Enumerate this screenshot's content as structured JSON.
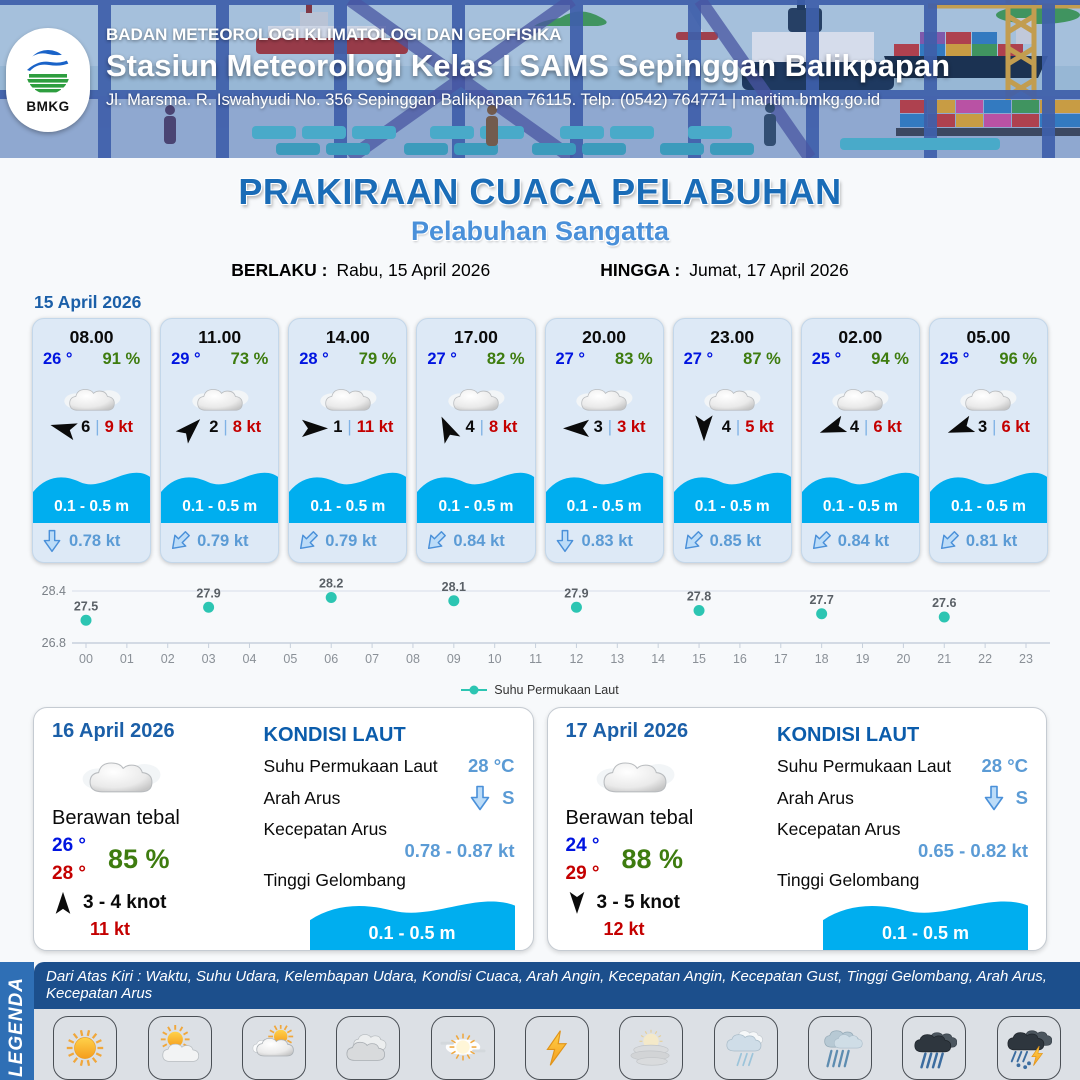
{
  "header": {
    "logo_text": "BMKG",
    "agency": "BADAN METEOROLOGI KLIMATOLOGI DAN GEOFISIKA",
    "station": "Stasiun Meteorologi Kelas I SAMS Sepinggan Balikpapan",
    "address": "Jl. Marsma. R. Iswahyudi No. 356 Sepinggan Balikpapan 76115. Telp. (0542) 764771 | maritim.bmkg.go.id"
  },
  "title": {
    "main": "PRAKIRAAN CUACA PELABUHAN",
    "port": "Pelabuhan Sangatta",
    "valid_label": "BERLAKU :",
    "valid_value": "Rabu, 15 April 2026",
    "until_label": "HINGGA :",
    "until_value": "Jumat, 17 April 2026"
  },
  "forecast_date": "15 April 2026",
  "hourly": [
    {
      "time": "08.00",
      "temp": "26 °",
      "rh": "91 %",
      "wind_val": "6",
      "wind_kt": "9 kt",
      "wave": "0.1 - 0.5 m",
      "current": "0.78 kt",
      "wind_deg": 195,
      "cur_deg": 0
    },
    {
      "time": "11.00",
      "temp": "29 °",
      "rh": "73 %",
      "wind_val": "2",
      "wind_kt": "8 kt",
      "wave": "0.1 - 0.5 m",
      "current": "0.79 kt",
      "wind_deg": -45,
      "cur_deg": 45
    },
    {
      "time": "14.00",
      "temp": "28 °",
      "rh": "79 %",
      "wind_val": "1",
      "wind_kt": "11 kt",
      "wave": "0.1 - 0.5 m",
      "current": "0.79 kt",
      "wind_deg": 0,
      "cur_deg": 45
    },
    {
      "time": "17.00",
      "temp": "27 °",
      "rh": "82 %",
      "wind_val": "4",
      "wind_kt": "8 kt",
      "wave": "0.1 - 0.5 m",
      "current": "0.84 kt",
      "wind_deg": -115,
      "cur_deg": 45
    },
    {
      "time": "20.00",
      "temp": "27 °",
      "rh": "83 %",
      "wind_val": "3",
      "wind_kt": "3 kt",
      "wave": "0.1 - 0.5 m",
      "current": "0.83 kt",
      "wind_deg": 180,
      "cur_deg": 0
    },
    {
      "time": "23.00",
      "temp": "27 °",
      "rh": "87 %",
      "wind_val": "4",
      "wind_kt": "5 kt",
      "wave": "0.1 - 0.5 m",
      "current": "0.85 kt",
      "wind_deg": 90,
      "cur_deg": 45
    },
    {
      "time": "02.00",
      "temp": "25 °",
      "rh": "94 %",
      "wind_val": "4",
      "wind_kt": "6 kt",
      "wave": "0.1 - 0.5 m",
      "current": "0.84 kt",
      "wind_deg": 160,
      "cur_deg": 45
    },
    {
      "time": "05.00",
      "temp": "25 °",
      "rh": "96 %",
      "wind_val": "3",
      "wind_kt": "6 kt",
      "wave": "0.1 - 0.5 m",
      "current": "0.81 kt",
      "wind_deg": 160,
      "cur_deg": 45
    }
  ],
  "chart_data": {
    "type": "scatter",
    "title": "",
    "legend": "Suhu Permukaan Laut",
    "x": [
      0,
      3,
      6,
      9,
      12,
      15,
      18,
      21
    ],
    "values": [
      27.5,
      27.9,
      28.2,
      28.1,
      27.9,
      27.8,
      27.7,
      27.6
    ],
    "x_ticks": [
      "00",
      "01",
      "02",
      "03",
      "04",
      "05",
      "06",
      "07",
      "08",
      "09",
      "10",
      "11",
      "12",
      "13",
      "14",
      "15",
      "16",
      "17",
      "18",
      "19",
      "20",
      "21",
      "22",
      "23"
    ],
    "y_ticks": [
      "28.4",
      "26.8"
    ],
    "ylim": [
      26.8,
      28.4
    ],
    "grid": true,
    "legend_position": "bottom",
    "dot_color": "#2cc5b2"
  },
  "days": [
    {
      "date": "16 April 2026",
      "condition": "Berawan tebal",
      "temp_min": "26 °",
      "temp_max": "28 °",
      "rh": "85 %",
      "wind_range": "3  - 4 knot",
      "gust": "11 kt",
      "wind_deg": -90,
      "sea": {
        "title": "KONDISI LAUT",
        "sst_label": "Suhu Permukaan Laut",
        "sst": "28 °C",
        "dir_label": "Arah Arus",
        "dir": "S",
        "dir_deg": 0,
        "speed_label": "Kecepatan Arus",
        "speed": "0.78  - 0.87 kt",
        "wave_label": "Tinggi Gelombang",
        "wave": "0.1 - 0.5 m"
      }
    },
    {
      "date": "17 April 2026",
      "condition": "Berawan tebal",
      "temp_min": "24 °",
      "temp_max": "29 °",
      "rh": "88 %",
      "wind_range": "3  - 5 knot",
      "gust": "12 kt",
      "wind_deg": 90,
      "sea": {
        "title": "KONDISI LAUT",
        "sst_label": "Suhu Permukaan Laut",
        "sst": "28 °C",
        "dir_label": "Arah Arus",
        "dir": "S",
        "dir_deg": 0,
        "speed_label": "Kecepatan Arus",
        "speed": "0.65  - 0.82 kt",
        "wave_label": "Tinggi Gelombang",
        "wave": "0.1 - 0.5 m"
      }
    }
  ],
  "legend": {
    "bar_label": "LEGENDA",
    "description": "Dari Atas Kiri : Waktu, Suhu Udara, Kelembapan Udara, Kondisi Cuaca, Arah Angin, Kecepatan Angin, Kecepatan Gust, Tinggi Gelombang, Arah Arus, Kecepatan Arus",
    "items": [
      {
        "label": "Cerah",
        "icon": "cerah"
      },
      {
        "label": "Cerah Berawan",
        "icon": "cerah-berawan"
      },
      {
        "label": "Berawan",
        "icon": "berawan"
      },
      {
        "label": "Berawan Tebal",
        "icon": "berawan-tebal"
      },
      {
        "label": "Udara Kabur",
        "icon": "udara-kabur"
      },
      {
        "label": "Petir",
        "icon": "petir"
      },
      {
        "label": "Kabut",
        "icon": "kabut"
      },
      {
        "label": "Hujan Ringan",
        "icon": "hujan-ringan"
      },
      {
        "label": "Hujan Sedang",
        "icon": "hujan-sedang"
      },
      {
        "label": "Hujan Lebat",
        "icon": "hujan-lebat"
      },
      {
        "label": "Hujan Petir",
        "icon": "hujan-petir"
      }
    ]
  },
  "colors": {
    "accent_blue": "#1a6cb7",
    "port_blue": "#4a90d9",
    "temp_blue": "#0014e0",
    "rh_green": "#3e7c0f",
    "kt_red": "#c40000",
    "wave_cyan": "#00aeef",
    "current_blue": "#5b9bd5",
    "chart_teal": "#2cc5b2",
    "legend_bar": "#2f6fb5",
    "legend_desc_bg": "#1c4f8c"
  }
}
